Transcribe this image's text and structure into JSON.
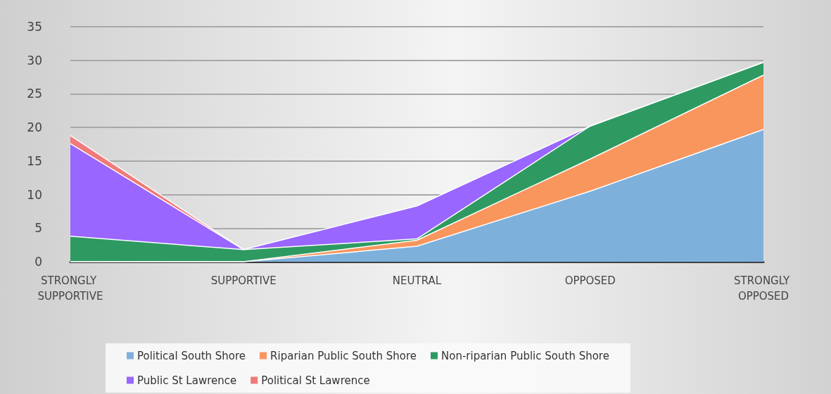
{
  "chart_data": {
    "type": "area",
    "stacked": true,
    "categories": [
      "STRONGLY SUPPORTIVE",
      "SUPPORTIVE",
      "NEUTRAL",
      "OPPOSED",
      "STRONGLY OPPOSED"
    ],
    "series": [
      {
        "name": "Political South Shore",
        "color": "#7eb0dc",
        "values": [
          0,
          0,
          2.3,
          10.5,
          19.7
        ]
      },
      {
        "name": "Riparian Public South Shore",
        "color": "#f9965e",
        "values": [
          0,
          0,
          0.9,
          4.8,
          8.1
        ]
      },
      {
        "name": "Non-riparian Public South Shore",
        "color": "#2e9a62",
        "values": [
          3.8,
          1.8,
          0.2,
          4.9,
          1.9
        ]
      },
      {
        "name": "Public St Lawrence",
        "color": "#9966ff",
        "values": [
          13.8,
          0,
          4.9,
          0,
          0
        ]
      },
      {
        "name": "Political St Lawrence",
        "color": "#f17a7a",
        "values": [
          1.2,
          0,
          null,
          null,
          null
        ]
      }
    ],
    "ylim": [
      0,
      35
    ],
    "yticks": [
      0,
      5,
      10,
      15,
      20,
      25,
      30,
      35
    ],
    "grid": "y",
    "legend": "bottom"
  }
}
